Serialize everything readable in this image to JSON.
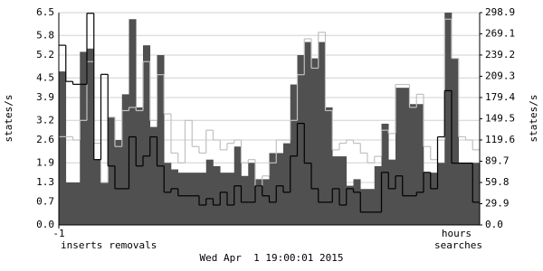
{
  "chart_data": {
    "type": "area",
    "ylabel": "states/s",
    "y2label": "states/s",
    "xlabel": "hours",
    "footer": "Wed Apr  1 19:00:01 2015",
    "categories": [
      "-1",
      null,
      null,
      null,
      null,
      null,
      null,
      null,
      null,
      null,
      null,
      null,
      null,
      null,
      null,
      null,
      null,
      null,
      null,
      null,
      null,
      null,
      null,
      null,
      null,
      null,
      null,
      null,
      null,
      null,
      null,
      null,
      null,
      null,
      null,
      null,
      null,
      null,
      null,
      null,
      null,
      null,
      null,
      null,
      null,
      null,
      null,
      null,
      null,
      null,
      null,
      null,
      null,
      null,
      null,
      null,
      null,
      null,
      null,
      null
    ],
    "ylim": [
      0,
      6.5
    ],
    "yticks": [
      {
        "value": 0,
        "label": "0.0"
      },
      0.7,
      1.3,
      1.9,
      2.6,
      3.2,
      3.9,
      4.5,
      5.2,
      5.8,
      6.5
    ],
    "y2lim": [
      0,
      298.9
    ],
    "y2ticks": [
      {
        "value": 0,
        "label": "0.0"
      },
      29.9,
      59.8,
      89.7,
      119.6,
      149.5,
      179.4,
      209.3,
      239.2,
      269.1,
      298.9
    ],
    "grid": true,
    "series": [
      {
        "name": "inserts",
        "type": "area",
        "color": "#505050",
        "values": [
          4.7,
          1.3,
          1.3,
          5.3,
          5.4,
          2.0,
          1.3,
          3.3,
          2.6,
          4.0,
          6.3,
          3.6,
          5.5,
          3.0,
          5.2,
          1.9,
          1.7,
          1.6,
          1.6,
          1.6,
          1.6,
          2.0,
          1.8,
          1.6,
          1.6,
          2.4,
          1.5,
          1.9,
          1.4,
          1.4,
          2.2,
          2.2,
          2.5,
          4.3,
          5.2,
          5.6,
          5.1,
          5.6,
          3.6,
          2.1,
          2.1,
          1.2,
          1.4,
          1.1,
          1.1,
          1.8,
          3.1,
          2.0,
          4.2,
          4.2,
          3.7,
          3.7,
          1.6,
          1.6,
          1.9,
          6.5,
          5.1,
          1.9,
          1.9,
          1.9
        ]
      },
      {
        "name": "removals",
        "type": "line",
        "color": "#c0c0c0",
        "values": [
          2.7,
          2.7,
          2.6,
          3.2,
          5.0,
          2.5,
          1.3,
          3.3,
          2.4,
          3.5,
          3.6,
          3.5,
          5.0,
          3.2,
          4.6,
          3.4,
          2.2,
          1.9,
          3.2,
          2.4,
          2.2,
          2.9,
          2.6,
          2.3,
          2.5,
          2.6,
          1.9,
          2.0,
          1.2,
          1.5,
          1.9,
          2.6,
          2.6,
          3.2,
          4.6,
          5.7,
          4.8,
          5.9,
          3.5,
          2.3,
          2.5,
          2.6,
          2.5,
          2.2,
          1.9,
          2.1,
          2.9,
          2.8,
          4.3,
          4.3,
          3.6,
          4.0,
          2.4,
          2.0,
          2.6,
          6.3,
          5.1,
          2.7,
          2.6,
          2.3
        ]
      },
      {
        "name": "searches",
        "type": "line",
        "color": "#000000",
        "axis": "y2",
        "values": [
          253,
          202,
          198,
          198,
          298,
          92,
          212,
          83,
          51,
          51,
          124,
          83,
          97,
          124,
          83,
          46,
          51,
          41,
          41,
          41,
          28,
          37,
          28,
          46,
          28,
          55,
          32,
          32,
          55,
          41,
          32,
          55,
          46,
          97,
          143,
          87,
          51,
          32,
          32,
          51,
          28,
          51,
          46,
          18,
          18,
          18,
          74,
          51,
          69,
          41,
          41,
          46,
          74,
          51,
          124,
          189,
          87,
          87,
          87,
          32
        ]
      }
    ]
  }
}
